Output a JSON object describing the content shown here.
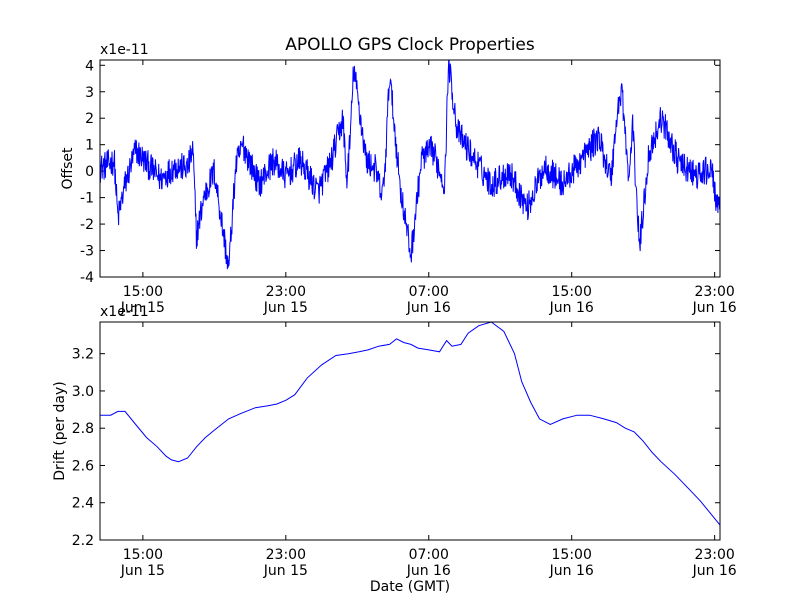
{
  "chart_data": [
    {
      "type": "line",
      "title": "APOLLO GPS Clock Properties",
      "ylabel": "Offset",
      "xlabel": "",
      "offset_text": "x1e-11",
      "xlim_hours": [
        12.6,
        47.3
      ],
      "ylim": [
        -4,
        4.2
      ],
      "x_ticks": [
        {
          "hour": 15,
          "time": "15:00",
          "date": "Jun 15"
        },
        {
          "hour": 23,
          "time": "23:00",
          "date": "Jun 15"
        },
        {
          "hour": 31,
          "time": "07:00",
          "date": "Jun 16"
        },
        {
          "hour": 39,
          "time": "15:00",
          "date": "Jun 16"
        },
        {
          "hour": 47,
          "time": "23:00",
          "date": "Jun 16"
        }
      ],
      "y_ticks": [
        "-4",
        "-3",
        "-2",
        "-1",
        "0",
        "1",
        "2",
        "3",
        "4"
      ],
      "y_tick_values": [
        -4,
        -3,
        -2,
        -1,
        0,
        1,
        2,
        3,
        4
      ],
      "series": [
        {
          "color": "#0000ff",
          "x": [
            12.6,
            13.4,
            13.6,
            14.0,
            14.6,
            15.2,
            16.0,
            16.8,
            17.5,
            17.8,
            18.0,
            18.4,
            19.0,
            19.8,
            20.2,
            20.6,
            21.5,
            22.3,
            23.0,
            23.8,
            24.8,
            25.5,
            26.2,
            26.4,
            26.6,
            26.8,
            27.5,
            28.0,
            28.4,
            28.6,
            28.8,
            29.4,
            30.0,
            30.6,
            31.2,
            31.9,
            32.1,
            32.6,
            33.5,
            34.5,
            35.5,
            36.5,
            37.5,
            38.5,
            39.5,
            40.5,
            41.2,
            41.5,
            41.8,
            42.2,
            42.4,
            42.8,
            43.3,
            44.0,
            44.5,
            45.0,
            46.0,
            46.8,
            47.2
          ],
          "y": [
            0.1,
            0.4,
            -1.8,
            -0.5,
            0.8,
            0.3,
            -0.3,
            0.2,
            0.1,
            0.8,
            -2.5,
            -1.0,
            0.0,
            -3.7,
            0.2,
            1.0,
            -0.5,
            0.4,
            -0.2,
            0.4,
            -0.8,
            0.3,
            2.0,
            -0.4,
            1.2,
            3.9,
            0.4,
            0.1,
            -1.0,
            0.6,
            3.7,
            -0.6,
            -3.2,
            0.5,
            0.8,
            -0.5,
            4.2,
            1.5,
            0.5,
            -0.5,
            0.0,
            -1.4,
            0.2,
            -0.5,
            0.4,
            1.3,
            -0.3,
            1.9,
            3.2,
            -0.5,
            1.8,
            -2.9,
            0.6,
            2.0,
            1.2,
            0.3,
            -0.2,
            0.1,
            -1.5
          ]
        }
      ]
    },
    {
      "type": "line",
      "title": "",
      "ylabel": "Drift (per day)",
      "xlabel": "Date (GMT)",
      "offset_text": "x1e-11",
      "xlim_hours": [
        12.6,
        47.3
      ],
      "ylim": [
        2.2,
        3.37
      ],
      "x_ticks": [
        {
          "hour": 15,
          "time": "15:00",
          "date": "Jun 15"
        },
        {
          "hour": 23,
          "time": "23:00",
          "date": "Jun 15"
        },
        {
          "hour": 31,
          "time": "07:00",
          "date": "Jun 16"
        },
        {
          "hour": 39,
          "time": "15:00",
          "date": "Jun 16"
        },
        {
          "hour": 47,
          "time": "23:00",
          "date": "Jun 16"
        }
      ],
      "y_ticks": [
        "2.2",
        "2.4",
        "2.6",
        "2.8",
        "3.0",
        "3.2"
      ],
      "y_tick_values": [
        2.2,
        2.4,
        2.6,
        2.8,
        3.0,
        3.2
      ],
      "series": [
        {
          "color": "#0000ff",
          "x": [
            12.6,
            13.2,
            13.6,
            14.0,
            14.6,
            15.2,
            15.8,
            16.3,
            16.6,
            17.0,
            17.5,
            18.0,
            18.5,
            19.0,
            19.8,
            20.5,
            21.3,
            22.0,
            22.5,
            23.0,
            23.5,
            24.2,
            25.0,
            25.8,
            26.5,
            27.1,
            27.6,
            28.2,
            28.8,
            29.2,
            29.6,
            30.0,
            30.4,
            31.0,
            31.6,
            32.0,
            32.3,
            32.8,
            33.2,
            33.8,
            34.5,
            35.2,
            35.8,
            36.2,
            36.7,
            37.2,
            37.8,
            38.5,
            39.3,
            40.0,
            40.8,
            41.5,
            42.0,
            42.5,
            43.0,
            43.5,
            44.0,
            44.8,
            45.5,
            46.2,
            47.3
          ],
          "y": [
            2.87,
            2.87,
            2.89,
            2.89,
            2.82,
            2.75,
            2.7,
            2.65,
            2.63,
            2.62,
            2.64,
            2.7,
            2.75,
            2.79,
            2.85,
            2.88,
            2.91,
            2.92,
            2.93,
            2.95,
            2.98,
            3.07,
            3.14,
            3.19,
            3.2,
            3.21,
            3.22,
            3.24,
            3.25,
            3.28,
            3.26,
            3.25,
            3.23,
            3.22,
            3.21,
            3.27,
            3.24,
            3.25,
            3.31,
            3.35,
            3.37,
            3.32,
            3.2,
            3.05,
            2.94,
            2.85,
            2.82,
            2.85,
            2.87,
            2.87,
            2.85,
            2.83,
            2.8,
            2.78,
            2.73,
            2.67,
            2.62,
            2.55,
            2.48,
            2.41,
            2.28
          ]
        }
      ]
    }
  ]
}
